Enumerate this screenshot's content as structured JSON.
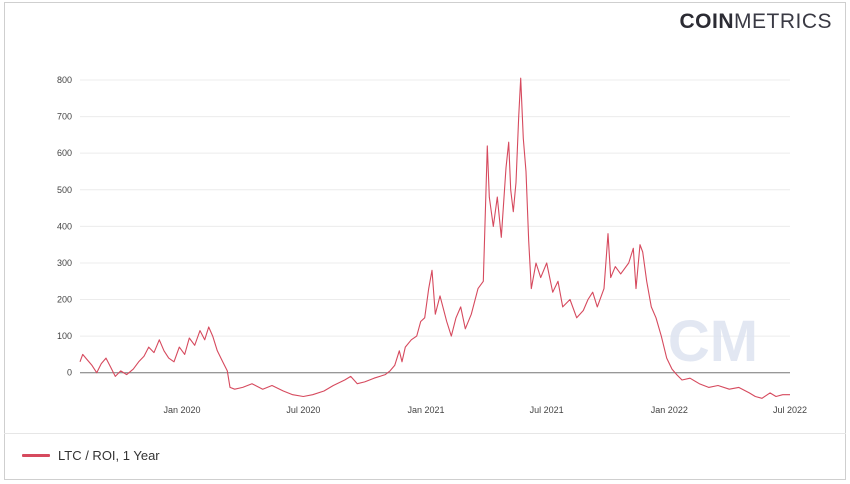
{
  "brand": {
    "bold": "COIN",
    "light": "METRICS",
    "color": "#2b2b33"
  },
  "watermark": "CM",
  "chart_data": {
    "type": "line",
    "ylim": [
      -80,
      800
    ],
    "yticks": [
      0,
      100,
      200,
      300,
      400,
      500,
      600,
      700,
      800
    ],
    "xrange": [
      "2019-08-01",
      "2022-07-01"
    ],
    "xticks": [
      {
        "date": "2020-01-01",
        "label": "Jan 2020"
      },
      {
        "date": "2020-07-01",
        "label": "Jul 2020"
      },
      {
        "date": "2021-01-01",
        "label": "Jan 2021"
      },
      {
        "date": "2021-07-01",
        "label": "Jul 2021"
      },
      {
        "date": "2022-01-01",
        "label": "Jan 2022"
      },
      {
        "date": "2022-07-01",
        "label": "Jul 2022"
      }
    ],
    "grid": true,
    "legend_position": "bottom-left",
    "series": [
      {
        "name": "LTC / ROI, 1 Year",
        "color": "#d64a5e",
        "points": [
          [
            "2019-08-01",
            30
          ],
          [
            "2019-08-05",
            50
          ],
          [
            "2019-08-12",
            35
          ],
          [
            "2019-08-19",
            20
          ],
          [
            "2019-08-26",
            0
          ],
          [
            "2019-09-02",
            25
          ],
          [
            "2019-09-09",
            40
          ],
          [
            "2019-09-16",
            15
          ],
          [
            "2019-09-23",
            -10
          ],
          [
            "2019-10-01",
            5
          ],
          [
            "2019-10-10",
            -5
          ],
          [
            "2019-10-20",
            10
          ],
          [
            "2019-10-28",
            30
          ],
          [
            "2019-11-05",
            45
          ],
          [
            "2019-11-12",
            70
          ],
          [
            "2019-11-20",
            55
          ],
          [
            "2019-11-28",
            90
          ],
          [
            "2019-12-05",
            60
          ],
          [
            "2019-12-12",
            40
          ],
          [
            "2019-12-20",
            30
          ],
          [
            "2019-12-28",
            70
          ],
          [
            "2020-01-05",
            50
          ],
          [
            "2020-01-12",
            95
          ],
          [
            "2020-01-20",
            75
          ],
          [
            "2020-01-28",
            115
          ],
          [
            "2020-02-04",
            90
          ],
          [
            "2020-02-10",
            125
          ],
          [
            "2020-02-16",
            100
          ],
          [
            "2020-02-23",
            60
          ],
          [
            "2020-03-02",
            30
          ],
          [
            "2020-03-09",
            5
          ],
          [
            "2020-03-13",
            -40
          ],
          [
            "2020-03-20",
            -45
          ],
          [
            "2020-04-01",
            -40
          ],
          [
            "2020-04-15",
            -30
          ],
          [
            "2020-05-01",
            -45
          ],
          [
            "2020-05-15",
            -35
          ],
          [
            "2020-06-01",
            -50
          ],
          [
            "2020-06-15",
            -60
          ],
          [
            "2020-07-01",
            -65
          ],
          [
            "2020-07-15",
            -60
          ],
          [
            "2020-08-01",
            -50
          ],
          [
            "2020-08-15",
            -35
          ],
          [
            "2020-09-01",
            -20
          ],
          [
            "2020-09-10",
            -10
          ],
          [
            "2020-09-20",
            -30
          ],
          [
            "2020-10-01",
            -25
          ],
          [
            "2020-10-15",
            -15
          ],
          [
            "2020-11-01",
            -5
          ],
          [
            "2020-11-08",
            5
          ],
          [
            "2020-11-15",
            20
          ],
          [
            "2020-11-22",
            60
          ],
          [
            "2020-11-26",
            30
          ],
          [
            "2020-12-01",
            70
          ],
          [
            "2020-12-10",
            90
          ],
          [
            "2020-12-18",
            100
          ],
          [
            "2020-12-24",
            140
          ],
          [
            "2020-12-30",
            150
          ],
          [
            "2021-01-05",
            230
          ],
          [
            "2021-01-10",
            280
          ],
          [
            "2021-01-15",
            160
          ],
          [
            "2021-01-22",
            210
          ],
          [
            "2021-02-01",
            140
          ],
          [
            "2021-02-08",
            100
          ],
          [
            "2021-02-15",
            150
          ],
          [
            "2021-02-22",
            180
          ],
          [
            "2021-03-01",
            120
          ],
          [
            "2021-03-10",
            160
          ],
          [
            "2021-03-20",
            230
          ],
          [
            "2021-03-28",
            250
          ],
          [
            "2021-04-03",
            620
          ],
          [
            "2021-04-06",
            480
          ],
          [
            "2021-04-12",
            400
          ],
          [
            "2021-04-18",
            480
          ],
          [
            "2021-04-24",
            370
          ],
          [
            "2021-05-01",
            560
          ],
          [
            "2021-05-05",
            630
          ],
          [
            "2021-05-08",
            500
          ],
          [
            "2021-05-12",
            440
          ],
          [
            "2021-05-16",
            520
          ],
          [
            "2021-05-20",
            700
          ],
          [
            "2021-05-23",
            805
          ],
          [
            "2021-05-27",
            640
          ],
          [
            "2021-05-31",
            550
          ],
          [
            "2021-06-04",
            360
          ],
          [
            "2021-06-08",
            230
          ],
          [
            "2021-06-15",
            300
          ],
          [
            "2021-06-22",
            260
          ],
          [
            "2021-07-01",
            300
          ],
          [
            "2021-07-10",
            220
          ],
          [
            "2021-07-18",
            250
          ],
          [
            "2021-07-25",
            180
          ],
          [
            "2021-08-05",
            200
          ],
          [
            "2021-08-15",
            150
          ],
          [
            "2021-08-25",
            170
          ],
          [
            "2021-09-01",
            200
          ],
          [
            "2021-09-08",
            220
          ],
          [
            "2021-09-15",
            180
          ],
          [
            "2021-09-25",
            230
          ],
          [
            "2021-10-01",
            380
          ],
          [
            "2021-10-05",
            260
          ],
          [
            "2021-10-12",
            290
          ],
          [
            "2021-10-20",
            270
          ],
          [
            "2021-11-01",
            300
          ],
          [
            "2021-11-08",
            340
          ],
          [
            "2021-11-12",
            230
          ],
          [
            "2021-11-18",
            350
          ],
          [
            "2021-11-22",
            330
          ],
          [
            "2021-11-28",
            250
          ],
          [
            "2021-12-05",
            180
          ],
          [
            "2021-12-12",
            150
          ],
          [
            "2021-12-20",
            100
          ],
          [
            "2021-12-28",
            40
          ],
          [
            "2022-01-05",
            10
          ],
          [
            "2022-01-12",
            -5
          ],
          [
            "2022-01-20",
            -20
          ],
          [
            "2022-02-01",
            -15
          ],
          [
            "2022-02-15",
            -30
          ],
          [
            "2022-03-01",
            -40
          ],
          [
            "2022-03-15",
            -35
          ],
          [
            "2022-04-01",
            -45
          ],
          [
            "2022-04-15",
            -40
          ],
          [
            "2022-05-01",
            -55
          ],
          [
            "2022-05-10",
            -65
          ],
          [
            "2022-05-20",
            -70
          ],
          [
            "2022-06-01",
            -55
          ],
          [
            "2022-06-10",
            -65
          ],
          [
            "2022-06-20",
            -60
          ],
          [
            "2022-07-01",
            -60
          ]
        ]
      }
    ]
  }
}
